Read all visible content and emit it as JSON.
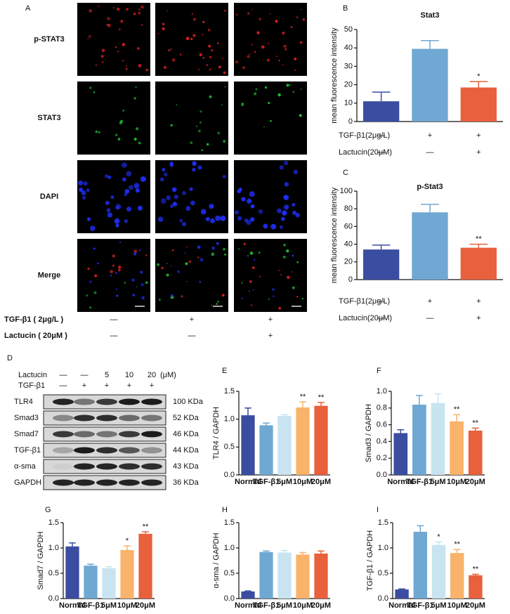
{
  "panel_a": {
    "letter": "A",
    "rows": [
      "p-STAT3",
      "STAT3",
      "DAPI",
      "Merge"
    ],
    "conditions": [
      {
        "label": "TGF-β1 ( 2μg/L )",
        "marks": [
          "—",
          "+",
          "+"
        ]
      },
      {
        "label": "Lactucin ( 20μM )",
        "marks": [
          "—",
          "—",
          "+"
        ]
      }
    ]
  },
  "panel_d": {
    "letter": "D",
    "treatments": [
      {
        "label": "Lactucin",
        "marks": [
          "—",
          "—",
          "5",
          "10",
          "20"
        ],
        "unit": "(μM)"
      },
      {
        "label": "TGF-β1",
        "marks": [
          "—",
          "+",
          "+",
          "+",
          "+"
        ]
      }
    ],
    "bands": [
      {
        "protein": "TLR4",
        "size": "100 KDa"
      },
      {
        "protein": "Smad3",
        "size": "52 KDa"
      },
      {
        "protein": "Smad7",
        "size": "46 KDa"
      },
      {
        "protein": "TGF-β1",
        "size": "44 KDa"
      },
      {
        "protein": "α-sma",
        "size": "43 KDa"
      },
      {
        "protein": "GAPDH",
        "size": "36 KDa"
      }
    ]
  },
  "chart_data": [
    {
      "type": "bar",
      "letter": "B",
      "title": "Stat3",
      "y_label": "mean fluorescence intensity",
      "values": [
        11,
        39.5,
        18.5
      ],
      "errors": [
        5,
        4.5,
        3.2
      ],
      "significance": [
        null,
        null,
        "*"
      ],
      "colors": [
        "#3b4da0",
        "#6fa8d2",
        "#e8603c"
      ],
      "ylim": [
        0,
        50
      ],
      "yticks": [
        0,
        10,
        20,
        30,
        40,
        50
      ],
      "conditions": [
        {
          "label": "TGF-β1(2μg/L)",
          "marks": [
            "—",
            "+",
            "+"
          ]
        },
        {
          "label": "Lactucin(20μM)",
          "marks": [
            "—",
            "—",
            "+"
          ]
        }
      ]
    },
    {
      "type": "bar",
      "letter": "C",
      "title": "p-Stat3",
      "y_label": "mean fluorescence intensity",
      "values": [
        34,
        76,
        36
      ],
      "errors": [
        5,
        9,
        4
      ],
      "significance": [
        null,
        null,
        "**"
      ],
      "colors": [
        "#3b4da0",
        "#6fa8d2",
        "#e8603c"
      ],
      "ylim": [
        0,
        100
      ],
      "yticks": [
        0,
        20,
        40,
        60,
        80,
        100
      ],
      "conditions": [
        {
          "label": "TGF-β1(2μg/L)",
          "marks": [
            "—",
            "+",
            "+"
          ]
        },
        {
          "label": "Lactucin(20μM)",
          "marks": [
            "—",
            "—",
            "+"
          ]
        }
      ]
    },
    {
      "type": "bar",
      "letter": "E",
      "y_label": "TLR4 / GAPDH",
      "categories": [
        "Normal",
        "TGF-β1",
        "5μM",
        "10μM",
        "20μM"
      ],
      "values": [
        1.07,
        0.89,
        1.06,
        1.21,
        1.24
      ],
      "errors": [
        0.13,
        0.04,
        0.02,
        0.1,
        0.06
      ],
      "significance": [
        null,
        null,
        null,
        "**",
        "**"
      ],
      "colors": [
        "#3b4da0",
        "#6fa8d2",
        "#c8e4f0",
        "#f9b36a",
        "#e8603c"
      ],
      "ylim": [
        0,
        1.5
      ],
      "yticks": [
        {
          "value": 0,
          "label": "0.0"
        },
        0.5,
        {
          "value": 1,
          "label": "1.0"
        },
        1.5
      ]
    },
    {
      "type": "bar",
      "letter": "F",
      "y_label": "Smad3 / GAPDH",
      "categories": [
        "Normal",
        "TGF-β1",
        "5μM",
        "10μM",
        "20μM"
      ],
      "values": [
        0.5,
        0.84,
        0.86,
        0.64,
        0.53
      ],
      "errors": [
        0.04,
        0.11,
        0.11,
        0.08,
        0.03
      ],
      "significance": [
        null,
        null,
        null,
        "**",
        "**"
      ],
      "colors": [
        "#3b4da0",
        "#6fa8d2",
        "#c8e4f0",
        "#f9b36a",
        "#e8603c"
      ],
      "ylim": [
        0,
        1
      ],
      "yticks": [
        {
          "value": 0,
          "label": "0.0"
        },
        0.2,
        0.4,
        0.6,
        0.8,
        {
          "value": 1,
          "label": "1.0"
        }
      ]
    },
    {
      "type": "bar",
      "letter": "G",
      "y_label": "Smad7 / GAPDH",
      "categories": [
        "Normal",
        "TGF-β1",
        "5μM",
        "10μM",
        "20μM"
      ],
      "values": [
        1.03,
        0.65,
        0.6,
        0.96,
        1.28
      ],
      "errors": [
        0.07,
        0.03,
        0.03,
        0.08,
        0.04
      ],
      "significance": [
        null,
        null,
        null,
        "*",
        "**"
      ],
      "colors": [
        "#3b4da0",
        "#6fa8d2",
        "#c8e4f0",
        "#f9b36a",
        "#e8603c"
      ],
      "ylim": [
        0,
        1.5
      ],
      "yticks": [
        {
          "value": 0,
          "label": "0.0"
        },
        0.5,
        {
          "value": 1,
          "label": "1.0"
        },
        1.5
      ]
    },
    {
      "type": "bar",
      "letter": "H",
      "y_label": "α-sma / GAPDH",
      "categories": [
        "Normal",
        "TGF-β1",
        "5μM",
        "10μM",
        "20μM"
      ],
      "values": [
        0.14,
        0.92,
        0.91,
        0.87,
        0.89
      ],
      "errors": [
        0.01,
        0.02,
        0.04,
        0.04,
        0.05
      ],
      "significance": [
        null,
        null,
        null,
        null,
        null
      ],
      "colors": [
        "#3b4da0",
        "#6fa8d2",
        "#c8e4f0",
        "#f9b36a",
        "#e8603c"
      ],
      "ylim": [
        0,
        1.5
      ],
      "yticks": [
        {
          "value": 0,
          "label": "0.0"
        },
        0.5,
        {
          "value": 1,
          "label": "1.0"
        },
        1.5
      ]
    },
    {
      "type": "bar",
      "letter": "I",
      "y_label": "TGF-β1 / GAPDH",
      "categories": [
        "Normal",
        "TGF-β1",
        "5μM",
        "10μM",
        "20μM"
      ],
      "values": [
        0.18,
        1.32,
        1.06,
        0.9,
        0.46
      ],
      "errors": [
        0.01,
        0.12,
        0.06,
        0.07,
        0.02
      ],
      "significance": [
        null,
        null,
        "*",
        "**",
        "**"
      ],
      "colors": [
        "#3b4da0",
        "#6fa8d2",
        "#c8e4f0",
        "#f9b36a",
        "#e8603c"
      ],
      "ylim": [
        0,
        1.5
      ],
      "yticks": [
        {
          "value": 0,
          "label": "0.0"
        },
        0.5,
        {
          "value": 1,
          "label": "1.0"
        },
        1.5
      ]
    }
  ]
}
